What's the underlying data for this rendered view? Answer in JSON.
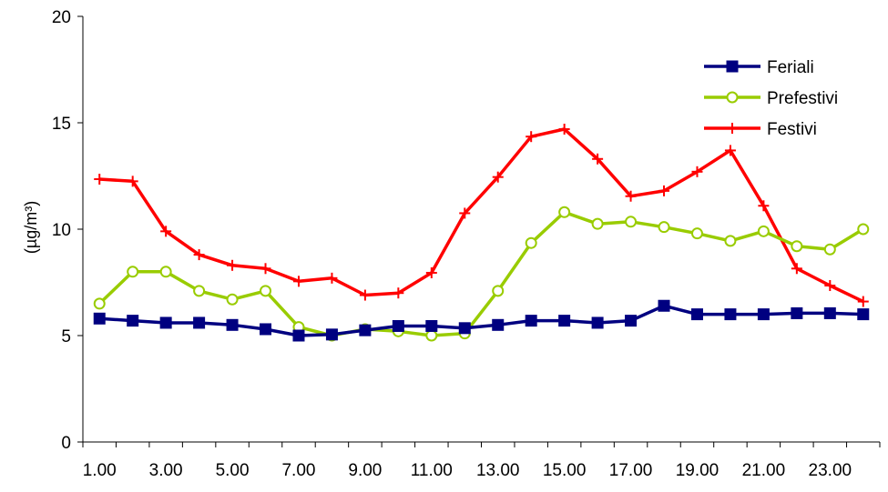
{
  "chart_data": {
    "type": "line",
    "title": "",
    "xlabel": "",
    "ylabel": "(µg/m³)",
    "ylim": [
      0,
      20
    ],
    "yticks": [
      0,
      5,
      10,
      15,
      20
    ],
    "categories": [
      "1.00",
      "2.00",
      "3.00",
      "4.00",
      "5.00",
      "6.00",
      "7.00",
      "8.00",
      "9.00",
      "10.00",
      "11.00",
      "12.00",
      "13.00",
      "14.00",
      "15.00",
      "16.00",
      "17.00",
      "18.00",
      "19.00",
      "20.00",
      "21.00",
      "22.00",
      "23.00",
      "24.00"
    ],
    "xtick_labels": [
      "1.00",
      "3.00",
      "5.00",
      "7.00",
      "9.00",
      "11.00",
      "13.00",
      "15.00",
      "17.00",
      "19.00",
      "21.00",
      "23.00"
    ],
    "grid": false,
    "legend_position": "top-right",
    "series": [
      {
        "name": "Feriali",
        "color": "#000080",
        "marker": "square",
        "values": [
          5.8,
          5.7,
          5.6,
          5.6,
          5.5,
          5.3,
          5.0,
          5.05,
          5.25,
          5.45,
          5.45,
          5.35,
          5.5,
          5.7,
          5.7,
          5.6,
          5.7,
          6.4,
          6.0,
          6.0,
          6.0,
          6.05,
          6.05,
          6.0
        ]
      },
      {
        "name": "Prefestivi",
        "color": "#99CC00",
        "marker": "circle",
        "values": [
          6.5,
          8.0,
          8.0,
          7.1,
          6.7,
          7.1,
          5.4,
          5.0,
          5.3,
          5.2,
          5.0,
          5.1,
          7.1,
          9.35,
          10.8,
          10.25,
          10.35,
          10.1,
          9.8,
          9.45,
          9.9,
          9.2,
          9.05,
          10.0
        ]
      },
      {
        "name": "Festivi",
        "color": "#FF0000",
        "marker": "plus",
        "values": [
          12.35,
          12.25,
          9.9,
          8.8,
          8.3,
          8.15,
          7.55,
          7.7,
          6.9,
          7.0,
          7.95,
          10.75,
          12.45,
          14.35,
          14.7,
          13.3,
          11.55,
          11.8,
          12.7,
          13.7,
          11.1,
          8.15,
          7.35,
          6.6
        ]
      }
    ]
  }
}
